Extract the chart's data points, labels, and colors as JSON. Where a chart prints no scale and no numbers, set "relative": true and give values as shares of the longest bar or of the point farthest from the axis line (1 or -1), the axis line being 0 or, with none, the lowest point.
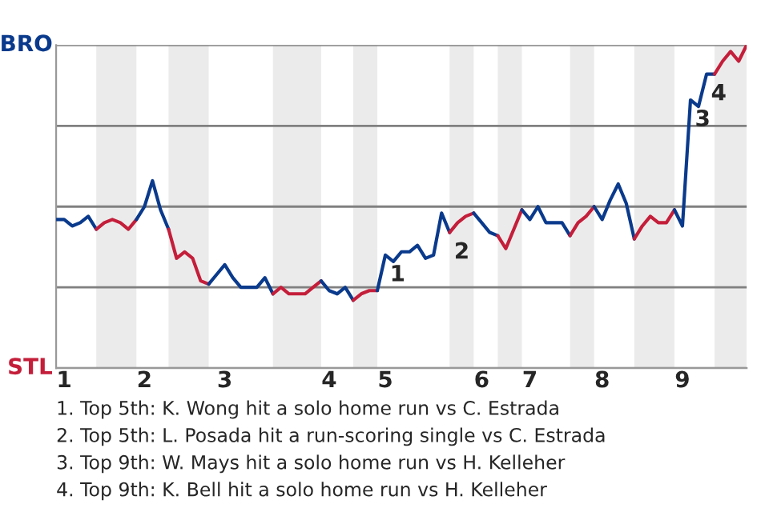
{
  "chart_data": {
    "type": "line",
    "relative": true,
    "categories": [
      null,
      "1",
      null,
      null,
      null,
      null,
      null,
      null,
      null,
      null,
      null,
      "2",
      null,
      null,
      null,
      null,
      null,
      null,
      null,
      null,
      null,
      "3",
      null,
      null,
      null,
      null,
      null,
      null,
      null,
      null,
      null,
      null,
      null,
      null,
      "4",
      null,
      null,
      null,
      null,
      null,
      null,
      "5",
      null,
      null,
      null,
      null,
      null,
      null,
      null,
      null,
      null,
      null,
      null,
      "6",
      null,
      null,
      null,
      null,
      null,
      "7",
      null,
      null,
      null,
      null,
      null,
      null,
      null,
      null,
      "8",
      null,
      null,
      null,
      null,
      null,
      null,
      null,
      null,
      null,
      "9",
      null,
      null,
      null,
      null,
      null,
      null,
      null,
      null
    ],
    "grid": "y",
    "legend": false,
    "marker": "none",
    "line_style": "solid",
    "series": [
      {
        "color": "#0a3a8c",
        "values": [
          0.46,
          0.46,
          0.44,
          0.45,
          0.47,
          0.43,
          null,
          null,
          null,
          null,
          null,
          null,
          null,
          null,
          null,
          null,
          null,
          null,
          null,
          null,
          null,
          null,
          null,
          null,
          null,
          null,
          null,
          null,
          null,
          null,
          null,
          null,
          null,
          null,
          null,
          null,
          null,
          null,
          null,
          null,
          null,
          null,
          null,
          null,
          null,
          null,
          null,
          null,
          null,
          null,
          null,
          null,
          null,
          null,
          null,
          null,
          null,
          null,
          null,
          null,
          null,
          null,
          null,
          null,
          null,
          null,
          null,
          null,
          null,
          null,
          null,
          null,
          null,
          null,
          null,
          null,
          null,
          null,
          null,
          null,
          null,
          null,
          null,
          null,
          null,
          null,
          null
        ]
      },
      {
        "color": "#c41e3a",
        "values": [
          null,
          null,
          null,
          null,
          null,
          0.43,
          0.45,
          0.46,
          0.45,
          0.43,
          0.46,
          null,
          null,
          null,
          null,
          null,
          null,
          null,
          null,
          null,
          null,
          null,
          null,
          null,
          null,
          null,
          null,
          null,
          null,
          null,
          null,
          null,
          null,
          null,
          null,
          null,
          null,
          null,
          null,
          null,
          null,
          null,
          null,
          null,
          null,
          null,
          null,
          null,
          null,
          null,
          null,
          null,
          null,
          null,
          null,
          null,
          null,
          null,
          null,
          null,
          null,
          null,
          null,
          null,
          null,
          null,
          null,
          null,
          null,
          null,
          null,
          null,
          null,
          null,
          null,
          null,
          null,
          null,
          null,
          null,
          null,
          null,
          null,
          null,
          null,
          null,
          null
        ]
      },
      {
        "color": "#0a3a8c",
        "values": [
          null,
          null,
          null,
          null,
          null,
          null,
          null,
          null,
          null,
          null,
          0.46,
          0.5,
          0.58,
          0.49,
          0.43,
          null,
          null,
          null,
          null,
          null,
          null,
          null,
          null,
          null,
          null,
          null,
          null,
          null,
          null,
          null,
          null,
          null,
          null,
          null,
          null,
          null,
          null,
          null,
          null,
          null,
          null,
          null,
          null,
          null,
          null,
          null,
          null,
          null,
          null,
          null,
          null,
          null,
          null,
          null,
          null,
          null,
          null,
          null,
          null,
          null,
          null,
          null,
          null,
          null,
          null,
          null,
          null,
          null,
          null,
          null,
          null,
          null,
          null,
          null,
          null,
          null,
          null,
          null,
          null,
          null,
          null,
          null,
          null,
          null,
          null,
          null,
          null
        ]
      },
      {
        "color": "#c41e3a",
        "values": [
          null,
          null,
          null,
          null,
          null,
          null,
          null,
          null,
          null,
          null,
          null,
          null,
          null,
          null,
          0.43,
          0.34,
          0.36,
          0.34,
          0.27,
          0.26,
          null,
          null,
          null,
          null,
          null,
          null,
          null,
          null,
          null,
          null,
          null,
          null,
          null,
          null,
          null,
          null,
          null,
          null,
          null,
          null,
          null,
          null,
          null,
          null,
          null,
          null,
          null,
          null,
          null,
          null,
          null,
          null,
          null,
          null,
          null,
          null,
          null,
          null,
          null,
          null,
          null,
          null,
          null,
          null,
          null,
          null,
          null,
          null,
          null,
          null,
          null,
          null,
          null,
          null,
          null,
          null,
          null,
          null,
          null,
          null,
          null,
          null,
          null,
          null,
          null,
          null,
          null
        ]
      },
      {
        "color": "#0a3a8c",
        "values": [
          null,
          null,
          null,
          null,
          null,
          null,
          null,
          null,
          null,
          null,
          null,
          null,
          null,
          null,
          null,
          null,
          null,
          null,
          null,
          0.26,
          0.29,
          0.32,
          0.28,
          0.25,
          0.25,
          0.25,
          0.28,
          0.23,
          null,
          null,
          null,
          null,
          null,
          null,
          null,
          null,
          null,
          null,
          null,
          null,
          null,
          null,
          null,
          null,
          null,
          null,
          null,
          null,
          null,
          null,
          null,
          null,
          null,
          null,
          null,
          null,
          null,
          null,
          null,
          null,
          null,
          null,
          null,
          null,
          null,
          null,
          null,
          null,
          null,
          null,
          null,
          null,
          null,
          null,
          null,
          null,
          null,
          null,
          null,
          null,
          null,
          null,
          null,
          null,
          null,
          null,
          null
        ]
      },
      {
        "color": "#c41e3a",
        "values": [
          null,
          null,
          null,
          null,
          null,
          null,
          null,
          null,
          null,
          null,
          null,
          null,
          null,
          null,
          null,
          null,
          null,
          null,
          null,
          null,
          null,
          null,
          null,
          null,
          null,
          null,
          null,
          0.23,
          0.25,
          0.23,
          0.23,
          0.23,
          0.25,
          0.27,
          null,
          null,
          null,
          null,
          null,
          null,
          null,
          null,
          null,
          null,
          null,
          null,
          null,
          null,
          null,
          null,
          null,
          null,
          null,
          null,
          null,
          null,
          null,
          null,
          null,
          null,
          null,
          null,
          null,
          null,
          null,
          null,
          null,
          null,
          null,
          null,
          null,
          null,
          null,
          null,
          null,
          null,
          null,
          null,
          null,
          null,
          null,
          null,
          null,
          null,
          null,
          null,
          null
        ]
      },
      {
        "color": "#0a3a8c",
        "values": [
          null,
          null,
          null,
          null,
          null,
          null,
          null,
          null,
          null,
          null,
          null,
          null,
          null,
          null,
          null,
          null,
          null,
          null,
          null,
          null,
          null,
          null,
          null,
          null,
          null,
          null,
          null,
          null,
          null,
          null,
          null,
          null,
          null,
          0.27,
          0.24,
          0.23,
          0.25,
          0.21,
          null,
          null,
          null,
          null,
          null,
          null,
          null,
          null,
          null,
          null,
          null,
          null,
          null,
          null,
          null,
          null,
          null,
          null,
          null,
          null,
          null,
          null,
          null,
          null,
          null,
          null,
          null,
          null,
          null,
          null,
          null,
          null,
          null,
          null,
          null,
          null,
          null,
          null,
          null,
          null,
          null,
          null,
          null,
          null,
          null,
          null,
          null,
          null,
          null
        ]
      },
      {
        "color": "#c41e3a",
        "values": [
          null,
          null,
          null,
          null,
          null,
          null,
          null,
          null,
          null,
          null,
          null,
          null,
          null,
          null,
          null,
          null,
          null,
          null,
          null,
          null,
          null,
          null,
          null,
          null,
          null,
          null,
          null,
          null,
          null,
          null,
          null,
          null,
          null,
          null,
          null,
          null,
          null,
          0.21,
          0.23,
          0.24,
          0.24,
          null,
          null,
          null,
          null,
          null,
          null,
          null,
          null,
          null,
          null,
          null,
          null,
          null,
          null,
          null,
          null,
          null,
          null,
          null,
          null,
          null,
          null,
          null,
          null,
          null,
          null,
          null,
          null,
          null,
          null,
          null,
          null,
          null,
          null,
          null,
          null,
          null,
          null,
          null,
          null,
          null,
          null,
          null,
          null,
          null,
          null
        ]
      },
      {
        "color": "#0a3a8c",
        "values": [
          null,
          null,
          null,
          null,
          null,
          null,
          null,
          null,
          null,
          null,
          null,
          null,
          null,
          null,
          null,
          null,
          null,
          null,
          null,
          null,
          null,
          null,
          null,
          null,
          null,
          null,
          null,
          null,
          null,
          null,
          null,
          null,
          null,
          null,
          null,
          null,
          null,
          null,
          null,
          null,
          0.24,
          0.35,
          0.33,
          0.36,
          0.36,
          0.38,
          0.34,
          0.35,
          0.48,
          0.42,
          null,
          null,
          null,
          null,
          null,
          null,
          null,
          null,
          null,
          null,
          null,
          null,
          null,
          null,
          null,
          null,
          null,
          null,
          null,
          null,
          null,
          null,
          null,
          null,
          null,
          null,
          null,
          null,
          null,
          null,
          null,
          null,
          null,
          null,
          null,
          null,
          null
        ]
      },
      {
        "color": "#c41e3a",
        "values": [
          null,
          null,
          null,
          null,
          null,
          null,
          null,
          null,
          null,
          null,
          null,
          null,
          null,
          null,
          null,
          null,
          null,
          null,
          null,
          null,
          null,
          null,
          null,
          null,
          null,
          null,
          null,
          null,
          null,
          null,
          null,
          null,
          null,
          null,
          null,
          null,
          null,
          null,
          null,
          null,
          null,
          null,
          null,
          null,
          null,
          null,
          null,
          null,
          null,
          0.42,
          0.45,
          0.47,
          0.48,
          null,
          null,
          null,
          null,
          null,
          null,
          null,
          null,
          null,
          null,
          null,
          null,
          null,
          null,
          null,
          null,
          null,
          null,
          null,
          null,
          null,
          null,
          null,
          null,
          null,
          null,
          null,
          null,
          null,
          null,
          null,
          null,
          null,
          null
        ]
      },
      {
        "color": "#0a3a8c",
        "values": [
          null,
          null,
          null,
          null,
          null,
          null,
          null,
          null,
          null,
          null,
          null,
          null,
          null,
          null,
          null,
          null,
          null,
          null,
          null,
          null,
          null,
          null,
          null,
          null,
          null,
          null,
          null,
          null,
          null,
          null,
          null,
          null,
          null,
          null,
          null,
          null,
          null,
          null,
          null,
          null,
          null,
          null,
          null,
          null,
          null,
          null,
          null,
          null,
          null,
          null,
          null,
          null,
          0.48,
          0.45,
          0.42,
          0.41,
          null,
          null,
          null,
          null,
          null,
          null,
          null,
          null,
          null,
          null,
          null,
          null,
          null,
          null,
          null,
          null,
          null,
          null,
          null,
          null,
          null,
          null,
          null,
          null,
          null,
          null,
          null,
          null,
          null,
          null,
          null
        ]
      },
      {
        "color": "#c41e3a",
        "values": [
          null,
          null,
          null,
          null,
          null,
          null,
          null,
          null,
          null,
          null,
          null,
          null,
          null,
          null,
          null,
          null,
          null,
          null,
          null,
          null,
          null,
          null,
          null,
          null,
          null,
          null,
          null,
          null,
          null,
          null,
          null,
          null,
          null,
          null,
          null,
          null,
          null,
          null,
          null,
          null,
          null,
          null,
          null,
          null,
          null,
          null,
          null,
          null,
          null,
          null,
          null,
          null,
          null,
          null,
          null,
          0.41,
          0.37,
          0.43,
          0.49,
          null,
          null,
          null,
          null,
          null,
          null,
          null,
          null,
          null,
          null,
          null,
          null,
          null,
          null,
          null,
          null,
          null,
          null,
          null,
          null,
          null,
          null,
          null,
          null,
          null,
          null,
          null,
          null
        ]
      },
      {
        "color": "#0a3a8c",
        "values": [
          null,
          null,
          null,
          null,
          null,
          null,
          null,
          null,
          null,
          null,
          null,
          null,
          null,
          null,
          null,
          null,
          null,
          null,
          null,
          null,
          null,
          null,
          null,
          null,
          null,
          null,
          null,
          null,
          null,
          null,
          null,
          null,
          null,
          null,
          null,
          null,
          null,
          null,
          null,
          null,
          null,
          null,
          null,
          null,
          null,
          null,
          null,
          null,
          null,
          null,
          null,
          null,
          null,
          null,
          null,
          null,
          null,
          null,
          0.49,
          0.46,
          0.5,
          0.45,
          0.45,
          0.45,
          0.41,
          null,
          null,
          null,
          null,
          null,
          null,
          null,
          null,
          null,
          null,
          null,
          null,
          null,
          null,
          null,
          null,
          null,
          null,
          null,
          null,
          null,
          null
        ]
      },
      {
        "color": "#c41e3a",
        "values": [
          null,
          null,
          null,
          null,
          null,
          null,
          null,
          null,
          null,
          null,
          null,
          null,
          null,
          null,
          null,
          null,
          null,
          null,
          null,
          null,
          null,
          null,
          null,
          null,
          null,
          null,
          null,
          null,
          null,
          null,
          null,
          null,
          null,
          null,
          null,
          null,
          null,
          null,
          null,
          null,
          null,
          null,
          null,
          null,
          null,
          null,
          null,
          null,
          null,
          null,
          null,
          null,
          null,
          null,
          null,
          null,
          null,
          null,
          null,
          null,
          null,
          null,
          null,
          null,
          0.41,
          0.45,
          0.47,
          0.5,
          null,
          null,
          null,
          null,
          null,
          null,
          null,
          null,
          null,
          null,
          null,
          null,
          null,
          null,
          null,
          null,
          null,
          null,
          null
        ]
      },
      {
        "color": "#0a3a8c",
        "values": [
          null,
          null,
          null,
          null,
          null,
          null,
          null,
          null,
          null,
          null,
          null,
          null,
          null,
          null,
          null,
          null,
          null,
          null,
          null,
          null,
          null,
          null,
          null,
          null,
          null,
          null,
          null,
          null,
          null,
          null,
          null,
          null,
          null,
          null,
          null,
          null,
          null,
          null,
          null,
          null,
          null,
          null,
          null,
          null,
          null,
          null,
          null,
          null,
          null,
          null,
          null,
          null,
          null,
          null,
          null,
          null,
          null,
          null,
          null,
          null,
          null,
          null,
          null,
          null,
          null,
          null,
          null,
          0.5,
          0.46,
          0.52,
          0.57,
          0.51,
          0.4,
          null,
          null,
          null,
          null,
          null,
          null,
          null,
          null,
          null,
          null,
          null,
          null,
          null,
          null
        ]
      },
      {
        "color": "#c41e3a",
        "values": [
          null,
          null,
          null,
          null,
          null,
          null,
          null,
          null,
          null,
          null,
          null,
          null,
          null,
          null,
          null,
          null,
          null,
          null,
          null,
          null,
          null,
          null,
          null,
          null,
          null,
          null,
          null,
          null,
          null,
          null,
          null,
          null,
          null,
          null,
          null,
          null,
          null,
          null,
          null,
          null,
          null,
          null,
          null,
          null,
          null,
          null,
          null,
          null,
          null,
          null,
          null,
          null,
          null,
          null,
          null,
          null,
          null,
          null,
          null,
          null,
          null,
          null,
          null,
          null,
          null,
          null,
          null,
          null,
          null,
          null,
          null,
          null,
          0.4,
          0.44,
          0.47,
          0.45,
          0.45,
          0.49,
          null,
          null,
          null,
          null,
          null,
          null,
          null,
          null,
          null
        ]
      },
      {
        "color": "#0a3a8c",
        "values": [
          null,
          null,
          null,
          null,
          null,
          null,
          null,
          null,
          null,
          null,
          null,
          null,
          null,
          null,
          null,
          null,
          null,
          null,
          null,
          null,
          null,
          null,
          null,
          null,
          null,
          null,
          null,
          null,
          null,
          null,
          null,
          null,
          null,
          null,
          null,
          null,
          null,
          null,
          null,
          null,
          null,
          null,
          null,
          null,
          null,
          null,
          null,
          null,
          null,
          null,
          null,
          null,
          null,
          null,
          null,
          null,
          null,
          null,
          null,
          null,
          null,
          null,
          null,
          null,
          null,
          null,
          null,
          null,
          null,
          null,
          null,
          null,
          null,
          null,
          null,
          null,
          null,
          0.49,
          0.44,
          0.83,
          0.81,
          0.91,
          0.91,
          null,
          null,
          null,
          null
        ]
      },
      {
        "color": "#c41e3a",
        "values": [
          null,
          null,
          null,
          null,
          null,
          null,
          null,
          null,
          null,
          null,
          null,
          null,
          null,
          null,
          null,
          null,
          null,
          null,
          null,
          null,
          null,
          null,
          null,
          null,
          null,
          null,
          null,
          null,
          null,
          null,
          null,
          null,
          null,
          null,
          null,
          null,
          null,
          null,
          null,
          null,
          null,
          null,
          null,
          null,
          null,
          null,
          null,
          null,
          null,
          null,
          null,
          null,
          null,
          null,
          null,
          null,
          null,
          null,
          null,
          null,
          null,
          null,
          null,
          null,
          null,
          null,
          null,
          null,
          null,
          null,
          null,
          null,
          null,
          null,
          null,
          null,
          null,
          null,
          null,
          null,
          null,
          null,
          0.91,
          0.95,
          0.98,
          0.95,
          1.0
        ]
      }
    ],
    "annotations": [
      "BRO",
      "STL",
      {
        "text": "1",
        "y": 0.35
      },
      {
        "text": "2",
        "y": 0.42
      },
      {
        "text": "3",
        "y": 0.83
      },
      {
        "text": "4",
        "y": 0.91
      },
      "1. Top 5th: K. Wong hit a solo home run vs C. Estrada",
      "2. Top 5th: L. Posada hit a run-scoring single vs C. Estrada",
      "3. Top 9th: W. Mays hit a solo home run vs H. Kelleher",
      "4. Top 9th: K. Bell hit a solo home run vs H. Kelleher"
    ]
  }
}
